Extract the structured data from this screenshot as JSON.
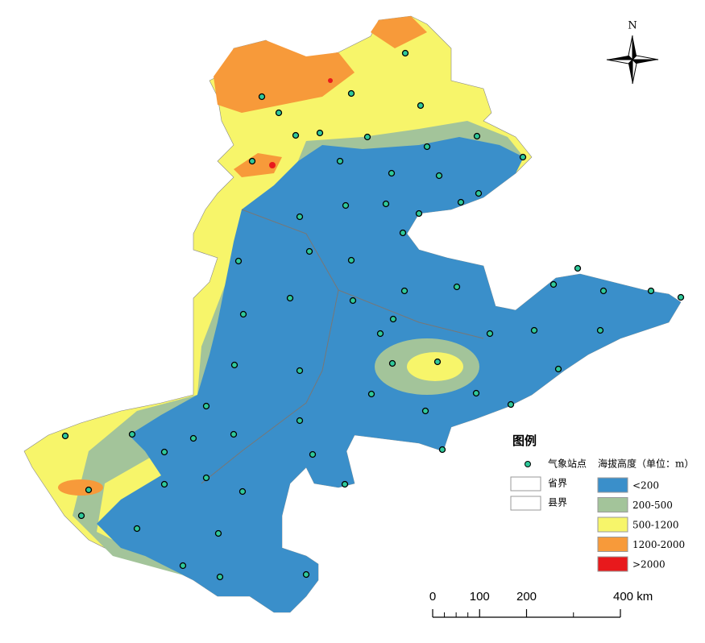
{
  "north_label": "N",
  "legend": {
    "title": "图例",
    "items": [
      "气象站点",
      "省界",
      "县界"
    ],
    "elevation_title": "海拔高度（单位：m）",
    "elevation_classes": [
      {
        "label": "<200",
        "color": "#3a8fca"
      },
      {
        "label": "200-500",
        "color": "#a3c49a"
      },
      {
        "label": "500-1200",
        "color": "#f7f56a"
      },
      {
        "label": "1200-2000",
        "color": "#f79a3a"
      },
      {
        "label": ">2000",
        "color": "#e8191c"
      }
    ]
  },
  "scale_bar": {
    "ticks": [
      0,
      100,
      200,
      {
        "value": 400,
        "label": "400 km"
      }
    ]
  }
}
